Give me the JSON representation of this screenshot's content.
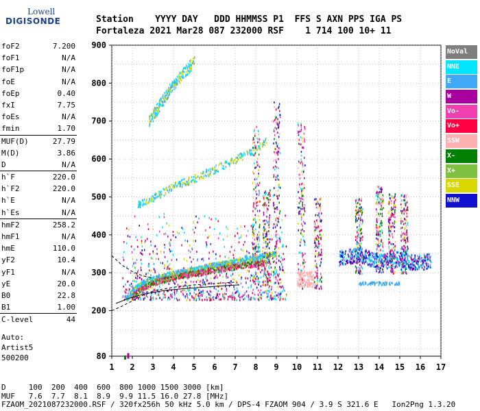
{
  "logo": {
    "line1": "Lowell",
    "line2": "DIGISONDE"
  },
  "header": {
    "row1": "Station    YYYY DAY   DDD HHMMSS P1  FFS S AXN PPS IGA PS",
    "row2": "Fortaleza 2021 Mar28 087 232000 RSF    1 714 100 10+ 11"
  },
  "params": {
    "groups": [
      [
        {
          "label": "foF2",
          "value": "7.200"
        },
        {
          "label": "foF1",
          "value": "N/A"
        },
        {
          "label": "foF1p",
          "value": "N/A"
        },
        {
          "label": "foE",
          "value": "N/A"
        },
        {
          "label": "foEp",
          "value": "0.40"
        },
        {
          "label": "fxI",
          "value": "7.75"
        },
        {
          "label": "foEs",
          "value": "N/A"
        },
        {
          "label": "fmin",
          "value": "1.70"
        }
      ],
      [
        {
          "label": "MUF(D)",
          "value": "27.79"
        },
        {
          "label": "M(D)",
          "value": "3.86"
        },
        {
          "label": "D",
          "value": "N/A"
        }
      ],
      [
        {
          "label": "h`F",
          "value": "220.0"
        },
        {
          "label": "h`F2",
          "value": "220.0"
        },
        {
          "label": "h`E",
          "value": "N/A"
        },
        {
          "label": "h`Es",
          "value": "N/A"
        }
      ],
      [
        {
          "label": "hmF2",
          "value": "258.2"
        },
        {
          "label": "hmF1",
          "value": "N/A"
        },
        {
          "label": "hmE",
          "value": "110.0"
        },
        {
          "label": "yF2",
          "value": "10.4"
        },
        {
          "label": "yF1",
          "value": "N/A"
        },
        {
          "label": "yE",
          "value": "20.0"
        },
        {
          "label": "B0",
          "value": "22.8"
        },
        {
          "label": "B1",
          "value": "1.00"
        }
      ],
      [
        {
          "label": "C-level",
          "value": "44"
        }
      ]
    ]
  },
  "auto": {
    "line1": "Auto:",
    "line2": "Artist5",
    "line3": "500200"
  },
  "legend": [
    {
      "label": "NoVal",
      "color": "#7f7f7f"
    },
    {
      "label": "NNE",
      "color": "#00e5ff"
    },
    {
      "label": "E",
      "color": "#3fa9f5"
    },
    {
      "label": "W",
      "color": "#a8009e"
    },
    {
      "label": "Vo-",
      "color": "#f040b0"
    },
    {
      "label": "Vo+",
      "color": "#ff0040"
    },
    {
      "label": "SSW",
      "color": "#ffb0b0"
    },
    {
      "label": "X-",
      "color": "#007f00"
    },
    {
      "label": "X+",
      "color": "#80c040"
    },
    {
      "label": "SSE",
      "color": "#d8d800"
    },
    {
      "label": "NNW",
      "color": "#1010d0"
    }
  ],
  "footer": {
    "line1": "D     100  200  400  600  800 1000 1500 3000 [km]",
    "line2": "MUF   7.6  7.7  8.1  8.9  9.9 11.5 16.0 27.8 [MHz]",
    "line3": "FZAOM_2021087232000.RSF / 320fx256h 50 kHz 5.0 km / DPS-4 FZAOM 904 / 3.9 S 321.6 E   Ion2Png 1.3.20"
  },
  "chart_data": {
    "type": "scatter",
    "xlim": [
      1,
      17
    ],
    "ylim": [
      80,
      900
    ],
    "x_ticks": [
      1,
      2,
      3,
      4,
      5,
      6,
      7,
      8,
      9,
      10,
      11,
      12,
      13,
      14,
      15,
      16,
      17
    ],
    "y_ticks": [
      80,
      200,
      300,
      400,
      500,
      600,
      700,
      800,
      900
    ],
    "grid": true,
    "profile_curve": [
      [
        1.2,
        219
      ],
      [
        1.8,
        232
      ],
      [
        2.5,
        243
      ],
      [
        3.5,
        253
      ],
      [
        4.5,
        258
      ],
      [
        5.5,
        262
      ],
      [
        6.5,
        266
      ],
      [
        7.2,
        268
      ]
    ],
    "model_curve_upper": [
      [
        1,
        345
      ],
      [
        1.5,
        320
      ],
      [
        2,
        303
      ],
      [
        2.5,
        292
      ],
      [
        3,
        286
      ]
    ],
    "model_curve_lower": [
      [
        1,
        200
      ],
      [
        1.5,
        212
      ],
      [
        2,
        226
      ],
      [
        2.5,
        240
      ],
      [
        3,
        252
      ],
      [
        4,
        262
      ],
      [
        5,
        268
      ],
      [
        6,
        272
      ],
      [
        7,
        275
      ]
    ],
    "trace_O": [
      [
        1.7,
        230
      ],
      [
        2,
        255
      ],
      [
        2.5,
        275
      ],
      [
        3,
        285
      ],
      [
        3.5,
        293
      ],
      [
        4,
        300
      ],
      [
        4.5,
        305
      ],
      [
        5,
        310
      ],
      [
        5.5,
        318
      ],
      [
        6,
        322
      ],
      [
        6.5,
        326
      ],
      [
        7,
        332
      ],
      [
        7.5,
        338
      ],
      [
        8,
        342
      ],
      [
        8.5,
        348
      ],
      [
        9,
        352
      ]
    ],
    "trace_X": [
      [
        2,
        240
      ],
      [
        2.5,
        262
      ],
      [
        3,
        275
      ],
      [
        3.5,
        283
      ],
      [
        4,
        290
      ],
      [
        4.5,
        296
      ],
      [
        5,
        300
      ],
      [
        5.5,
        305
      ],
      [
        6,
        310
      ],
      [
        6.5,
        314
      ],
      [
        7,
        318
      ],
      [
        7.5,
        322
      ],
      [
        8,
        325
      ],
      [
        8.5,
        328
      ]
    ],
    "second_hop": [
      [
        2.2,
        480
      ],
      [
        3,
        500
      ],
      [
        4,
        530
      ],
      [
        5,
        550
      ],
      [
        6,
        575
      ],
      [
        7,
        600
      ],
      [
        8,
        630
      ],
      [
        8.5,
        650
      ]
    ],
    "third_hop": [
      [
        2.8,
        700
      ],
      [
        3.5,
        760
      ],
      [
        4,
        800
      ],
      [
        4.5,
        830
      ],
      [
        5,
        860
      ]
    ],
    "high_x_cluster": [
      [
        12,
        340
      ],
      [
        12.5,
        345
      ],
      [
        13,
        350
      ],
      [
        13.5,
        340
      ],
      [
        14,
        330
      ],
      [
        14.5,
        335
      ],
      [
        15,
        338
      ],
      [
        15.5,
        330
      ],
      [
        16,
        330
      ],
      [
        16.5,
        332
      ]
    ],
    "spread_columns": [
      {
        "x": 8.0,
        "ymin": 270,
        "ymax": 690
      },
      {
        "x": 8.5,
        "ymin": 270,
        "ymax": 520
      },
      {
        "x": 9.0,
        "ymin": 270,
        "ymax": 760
      },
      {
        "x": 10.2,
        "ymin": 260,
        "ymax": 700
      },
      {
        "x": 11.0,
        "ymin": 260,
        "ymax": 500
      },
      {
        "x": 13.0,
        "ymin": 300,
        "ymax": 500
      },
      {
        "x": 14.0,
        "ymin": 300,
        "ymax": 530
      },
      {
        "x": 14.6,
        "ymin": 300,
        "ymax": 510
      },
      {
        "x": 15.2,
        "ymin": 300,
        "ymax": 510
      }
    ]
  }
}
